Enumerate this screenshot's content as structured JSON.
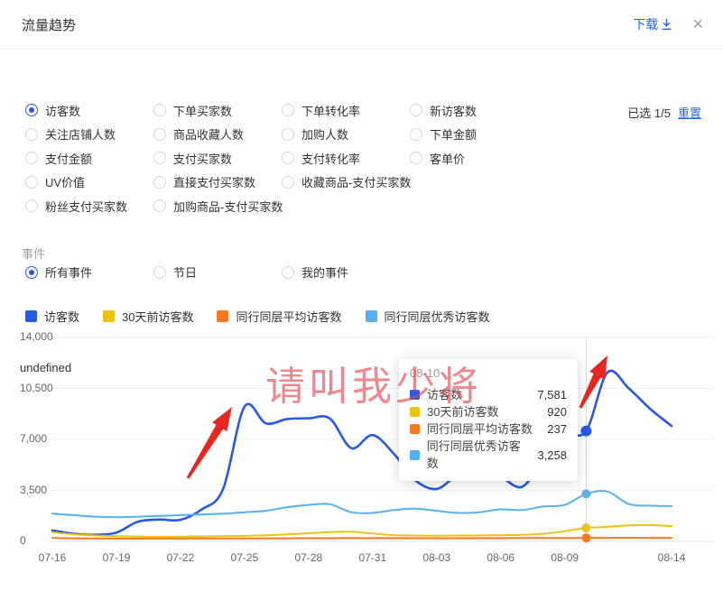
{
  "header": {
    "title": "流量趋势",
    "download_label": "下载",
    "close_label": "×"
  },
  "metrics": {
    "selected_info": "已选 1/5",
    "reset_label": "重置",
    "options": [
      {
        "label": "访客数",
        "selected": true
      },
      {
        "label": "下单买家数",
        "selected": false
      },
      {
        "label": "下单转化率",
        "selected": false
      },
      {
        "label": "新访客数",
        "selected": false
      },
      {
        "label": "关注店铺人数",
        "selected": false
      },
      {
        "label": "商品收藏人数",
        "selected": false
      },
      {
        "label": "加购人数",
        "selected": false
      },
      {
        "label": "下单金额",
        "selected": false
      },
      {
        "label": "支付金额",
        "selected": false
      },
      {
        "label": "支付买家数",
        "selected": false
      },
      {
        "label": "支付转化率",
        "selected": false
      },
      {
        "label": "客单价",
        "selected": false
      },
      {
        "label": "UV价值",
        "selected": false
      },
      {
        "label": "直接支付买家数",
        "selected": false
      },
      {
        "label": "收藏商品-支付买家数",
        "selected": false
      },
      {
        "label": "粉丝支付买家数",
        "selected": false
      },
      {
        "label": "加购商品-支付买家数",
        "selected": false
      }
    ]
  },
  "events": {
    "label": "事件",
    "options": [
      {
        "label": "所有事件",
        "selected": true
      },
      {
        "label": "节日",
        "selected": false
      },
      {
        "label": "我的事件",
        "selected": false
      }
    ]
  },
  "tooltip": {
    "title": "08-10",
    "rows": [
      {
        "label": "访客数",
        "value": "7,581"
      },
      {
        "label": "30天前访客数",
        "value": "920"
      },
      {
        "label": "同行同层平均访客数",
        "value": "237"
      },
      {
        "label": "同行同层优秀访客数",
        "value": "3,258"
      }
    ]
  },
  "watermark": "请叫我少将",
  "chart_data": {
    "type": "line",
    "title": "",
    "annotation_label": "undefined",
    "x": [
      "07-16",
      "07-17",
      "07-18",
      "07-19",
      "07-20",
      "07-21",
      "07-22",
      "07-23",
      "07-24",
      "07-25",
      "07-26",
      "07-27",
      "07-28",
      "07-29",
      "07-30",
      "07-31",
      "08-01",
      "08-02",
      "08-03",
      "08-04",
      "08-05",
      "08-06",
      "08-07",
      "08-08",
      "08-09",
      "08-10",
      "08-11",
      "08-12",
      "08-13",
      "08-14"
    ],
    "x_tick_labels": [
      "07-16",
      "07-19",
      "07-22",
      "07-25",
      "07-28",
      "07-31",
      "08-03",
      "08-06",
      "08-09",
      "08-14"
    ],
    "y_ticks": [
      0,
      3500,
      7000,
      10500,
      14000
    ],
    "ylim": [
      0,
      14000
    ],
    "grid": true,
    "legend_position": "top",
    "highlight_index": 25,
    "highlight_date": "08-10",
    "series": [
      {
        "name": "访客数",
        "color": "#2759e5",
        "values": [
          750,
          520,
          450,
          600,
          1350,
          1500,
          1480,
          2200,
          3600,
          9250,
          8100,
          8400,
          8450,
          8430,
          6400,
          7300,
          6000,
          4200,
          3600,
          4550,
          4600,
          4400,
          3750,
          5600,
          7300,
          7581,
          11600,
          10500,
          9100,
          7920
        ]
      },
      {
        "name": "30天前访客数",
        "color": "#eec214",
        "values": [
          620,
          480,
          400,
          360,
          330,
          310,
          320,
          340,
          360,
          380,
          420,
          480,
          560,
          640,
          660,
          540,
          430,
          400,
          390,
          400,
          410,
          430,
          450,
          520,
          700,
          920,
          1000,
          1100,
          1120,
          1050
        ]
      },
      {
        "name": "同行同层平均访客数",
        "color": "#f8791f",
        "values": [
          230,
          210,
          200,
          195,
          190,
          190,
          195,
          200,
          200,
          205,
          210,
          210,
          215,
          215,
          220,
          220,
          225,
          220,
          215,
          215,
          220,
          225,
          230,
          230,
          235,
          237,
          240,
          245,
          240,
          235
        ]
      },
      {
        "name": "同行同层优秀访客数",
        "color": "#55b2f2",
        "values": [
          1900,
          1800,
          1700,
          1660,
          1700,
          1750,
          1800,
          1850,
          1900,
          2000,
          2100,
          2350,
          2500,
          2550,
          2000,
          1950,
          2150,
          2250,
          2100,
          1950,
          2000,
          2200,
          2150,
          2400,
          2500,
          3258,
          3420,
          2560,
          2450,
          2420
        ]
      }
    ],
    "annotations": {
      "arrows": [
        {
          "from": [
            208,
            530
          ],
          "to": [
            257,
            451
          ],
          "color": "#e7261f"
        },
        {
          "from": [
            643,
            452
          ],
          "to": [
            673,
            394
          ],
          "color": "#e7261f"
        }
      ]
    }
  }
}
